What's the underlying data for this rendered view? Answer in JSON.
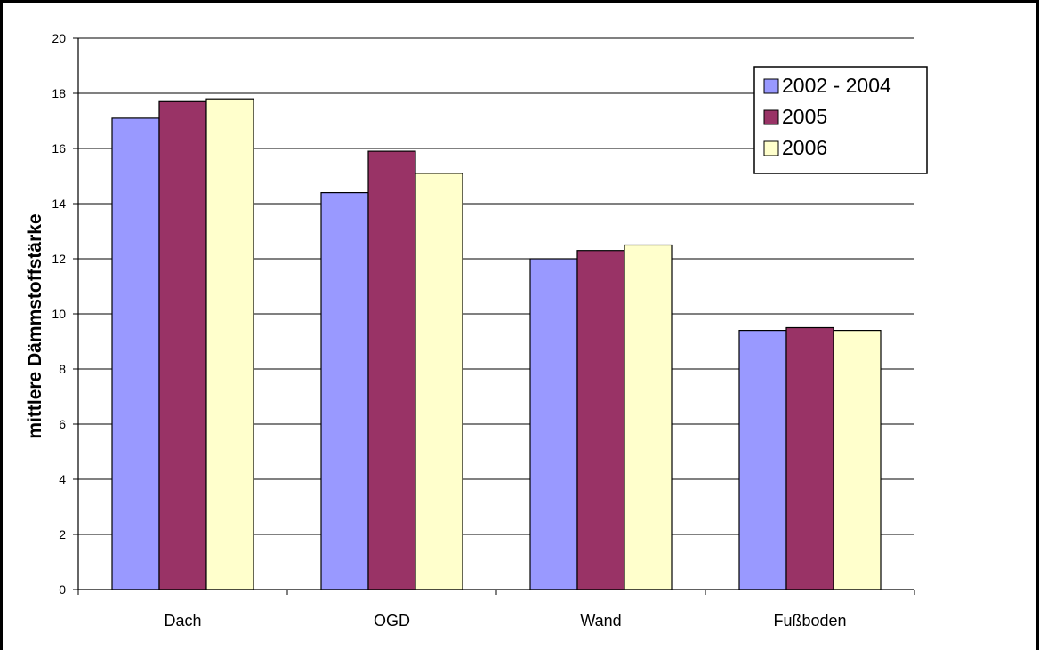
{
  "chart_data": {
    "type": "bar",
    "title": "",
    "xlabel": "",
    "ylabel": "mittlere Dämmstoffstärke",
    "categories": [
      "Dach",
      "OGD",
      "Wand",
      "Fußboden"
    ],
    "series": [
      {
        "name": "2002 - 2004",
        "values": [
          17.1,
          14.4,
          12.0,
          9.4
        ],
        "color": "#9999ff"
      },
      {
        "name": "2005",
        "values": [
          17.7,
          15.9,
          12.3,
          9.5
        ],
        "color": "#993366"
      },
      {
        "name": "2006",
        "values": [
          17.8,
          15.1,
          12.5,
          9.4
        ],
        "color": "#ffffcc"
      }
    ],
    "ylim": [
      0,
      20
    ],
    "yticks": [
      "0",
      "2",
      "4",
      "6",
      "8",
      "10",
      "12",
      "14",
      "16",
      "18",
      "20"
    ],
    "grid": true,
    "legend_position": "top-right"
  }
}
